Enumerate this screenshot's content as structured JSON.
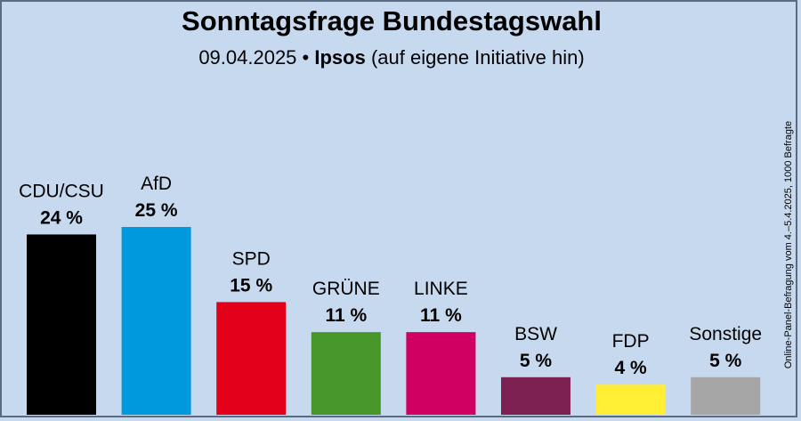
{
  "header": {
    "title": "Sonntagsfrage Bundestagswahl",
    "date": "09.04.2025",
    "separator": "•",
    "source": "Ipsos",
    "qualifier": "(auf eigene Initiative hin)"
  },
  "note": "Online-Panel-Befragung vom 4.–5.4.2025, 1000 Befragte",
  "chart_data": {
    "type": "bar",
    "title": "Sonntagsfrage Bundestagswahl",
    "categories": [
      "CDU/CSU",
      "AfD",
      "SPD",
      "GRÜNE",
      "LINKE",
      "BSW",
      "FDP",
      "Sonstige"
    ],
    "values": [
      24,
      25,
      15,
      11,
      11,
      5,
      4,
      5
    ],
    "value_labels": [
      "24 %",
      "25 %",
      "15 %",
      "11 %",
      "11 %",
      "5 %",
      "4 %",
      "5 %"
    ],
    "colors": [
      "#000000",
      "#0099dd",
      "#e3001b",
      "#46962b",
      "#cf005f",
      "#7c2152",
      "#ffee33",
      "#a6a6a6"
    ],
    "unit": "%",
    "grid": false,
    "legend": "none"
  }
}
